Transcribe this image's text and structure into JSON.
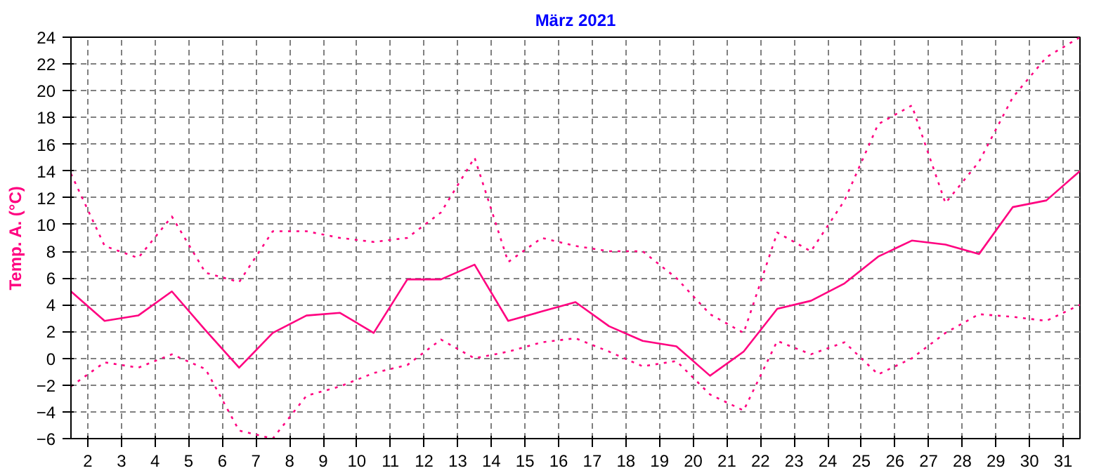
{
  "chart_data": {
    "type": "line",
    "title": "März 2021",
    "ylabel": "Temp. A. (°C)",
    "x": [
      1.5,
      2.5,
      3.5,
      4.5,
      5.5,
      6.5,
      7.5,
      8.5,
      9.5,
      10.5,
      11.5,
      12.5,
      13.5,
      14.5,
      15.5,
      16.5,
      17.5,
      18.5,
      19.5,
      20.5,
      21.5,
      22.5,
      23.5,
      24.5,
      25.5,
      26.5,
      27.5,
      28.5,
      29.5,
      30.5,
      31.5
    ],
    "series": [
      {
        "color": "#ff0080",
        "line_style": "solid",
        "values": [
          5.0,
          2.8,
          3.2,
          5.0,
          2.1,
          -0.7,
          1.9,
          3.2,
          3.4,
          1.9,
          5.9,
          5.9,
          7.0,
          2.8,
          3.5,
          4.2,
          2.4,
          1.3,
          0.9,
          -1.3,
          0.5,
          3.7,
          4.3,
          5.6,
          7.6,
          8.8,
          8.5,
          7.8,
          11.3,
          11.8,
          14.0
        ]
      },
      {
        "color": "#ff0080",
        "line_style": "dotted",
        "values": [
          13.8,
          8.4,
          7.5,
          10.6,
          6.4,
          5.7,
          9.5,
          9.5,
          9.0,
          8.7,
          9.0,
          10.9,
          15.0,
          7.2,
          9.0,
          8.4,
          8.0,
          8.0,
          6.0,
          3.3,
          1.9,
          9.4,
          8.0,
          11.8,
          17.5,
          18.9,
          11.6,
          14.7,
          19.5,
          22.5,
          24.0
        ]
      },
      {
        "color": "#ff0080",
        "line_style": "dotted",
        "values": [
          -2.1,
          -0.3,
          -0.7,
          0.3,
          -0.8,
          -5.4,
          -6.0,
          -2.8,
          -2.1,
          -1.1,
          -0.5,
          1.4,
          0.0,
          0.5,
          1.2,
          1.5,
          0.5,
          -0.6,
          -0.2,
          -2.7,
          -3.9,
          1.3,
          0.3,
          1.2,
          -1.2,
          0.0,
          1.9,
          3.3,
          3.1,
          2.8,
          4.0
        ]
      }
    ],
    "xlim": [
      1.5,
      31.5
    ],
    "xticks": [
      2,
      3,
      4,
      5,
      6,
      7,
      8,
      9,
      10,
      11,
      12,
      13,
      14,
      15,
      16,
      17,
      18,
      19,
      20,
      21,
      22,
      23,
      24,
      25,
      26,
      27,
      28,
      29,
      30,
      31
    ],
    "ylim": [
      -6,
      24
    ],
    "yticks": [
      -6,
      -4,
      -2,
      0,
      2,
      4,
      6,
      8,
      10,
      12,
      14,
      16,
      18,
      20,
      22,
      24
    ],
    "grid": true,
    "marker": "none"
  }
}
